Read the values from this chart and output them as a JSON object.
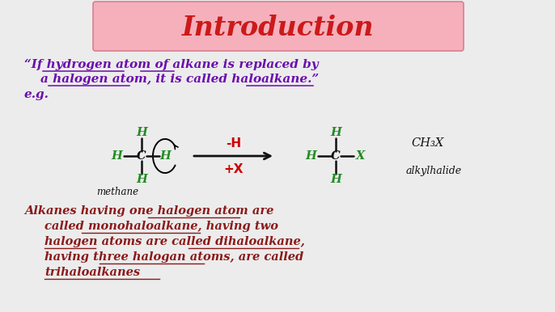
{
  "title": "Introduction",
  "title_color": "#cc1a1a",
  "title_bg_color": "#f5b0bc",
  "title_border_color": "#d88090",
  "background_color": "#ececec",
  "quote_text_line1": "“If hydrogen atom of alkane is replaced by",
  "quote_text_line2": "a halogen atom, it is called haloalkane.”",
  "quote_color": "#6a0dad",
  "eg_text": "e.g.",
  "eg_color": "#6a0dad",
  "methane_label": "methane",
  "ch3x_label": "CH₃X",
  "alkylhalide_label": "alkylhalide",
  "minus_h": "-H",
  "plus_x": "+X",
  "reaction_color": "#cc0000",
  "h_color": "#228B22",
  "c_color": "#111111",
  "x_color": "#228B22",
  "bond_color": "#111111",
  "arrow_color": "#111111",
  "bottom_text_line1": "Alkanes having one halogen atom are",
  "bottom_text_line2": "called monohaloalkane, having two",
  "bottom_text_line3": "halogen atoms are called dihaloalkane,",
  "bottom_text_line4": "having three halogan atoms, are called",
  "bottom_text_line5": "trihaloalkanes",
  "bottom_text_color": "#8b1a1a",
  "figsize": [
    6.86,
    3.86
  ],
  "dpi": 100
}
